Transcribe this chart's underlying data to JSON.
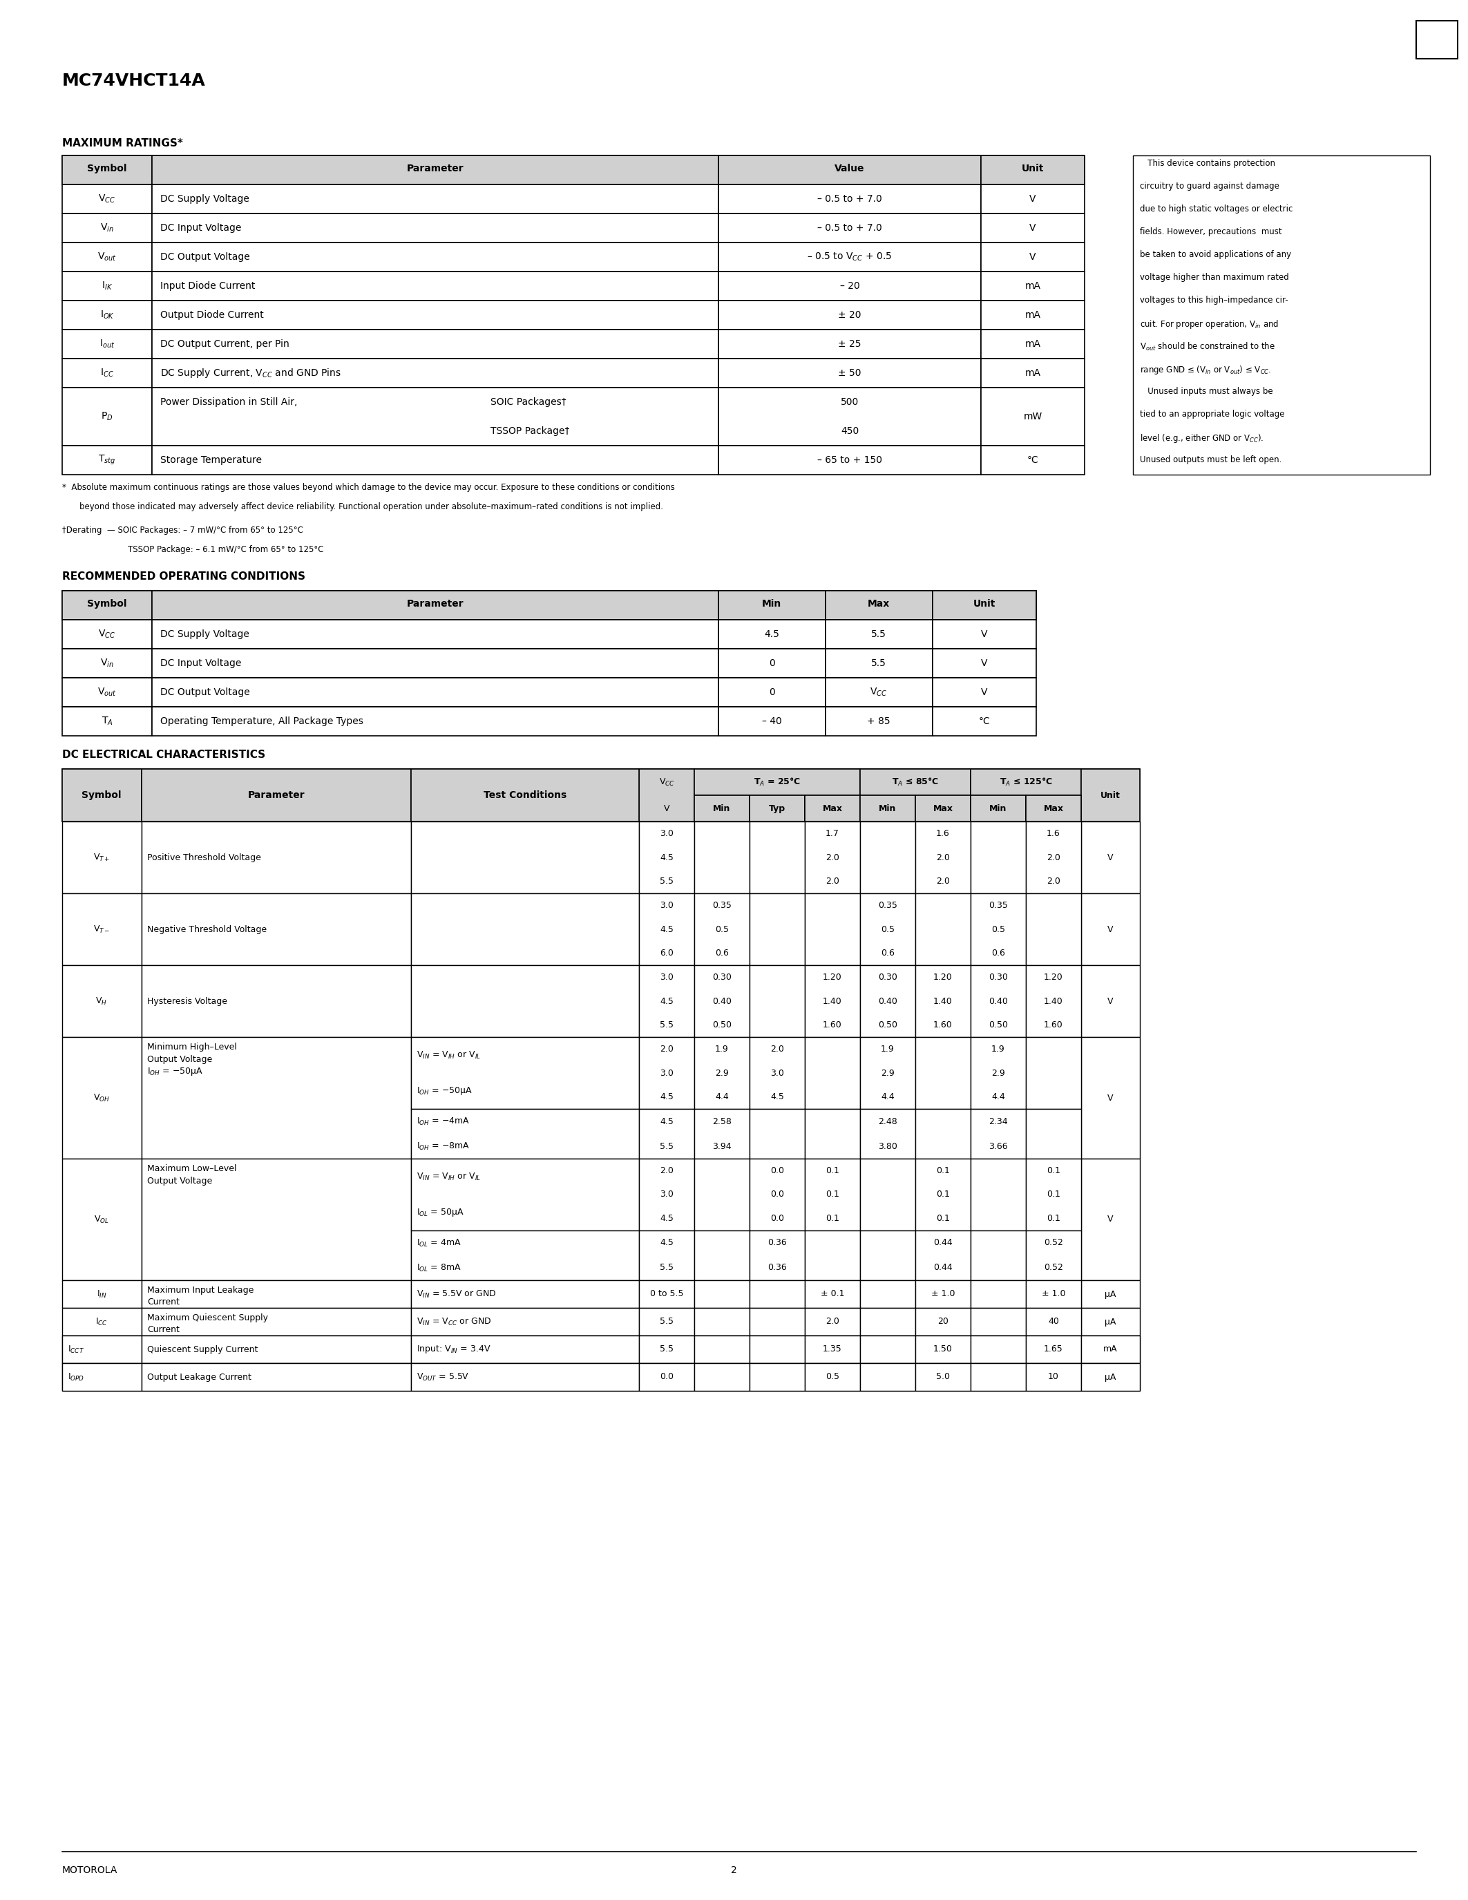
{
  "title": "MC74VHCT14A",
  "page_number": "2",
  "footer_left": "MOTOROLA",
  "bg": "#ffffff"
}
